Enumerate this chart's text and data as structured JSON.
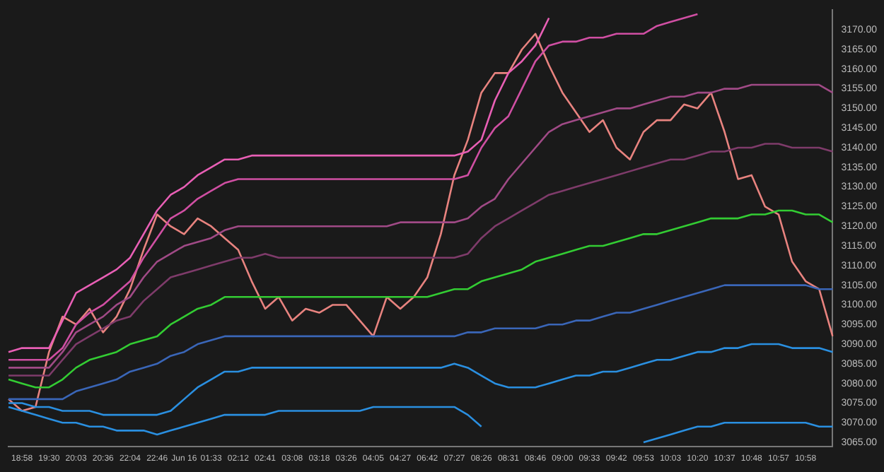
{
  "chart_data": {
    "type": "line",
    "grid": false,
    "legend": false,
    "marker": "none",
    "line_style": "solid",
    "categories": [
      null,
      "18:58",
      null,
      "19:30",
      null,
      "20:03",
      null,
      "20:36",
      null,
      "22:04",
      null,
      "22:46",
      null,
      "Jun 16",
      null,
      "01:33",
      null,
      "02:12",
      null,
      "02:41",
      null,
      "03:08",
      null,
      "03:18",
      null,
      "03:26",
      null,
      "04:05",
      null,
      "04:27",
      null,
      "06:42",
      null,
      "07:27",
      null,
      "08:26",
      null,
      "08:31",
      null,
      "08:46",
      null,
      "09:00",
      null,
      "09:33",
      null,
      "09:42",
      null,
      "09:53",
      null,
      "10:03",
      null,
      "10:20",
      null,
      "10:37",
      null,
      "10:48",
      null,
      "10:57",
      null,
      "10:58",
      null,
      null
    ],
    "ylim": [
      3064,
      3175
    ],
    "yticks": [
      {
        "value": 3065,
        "label": "3065.00"
      },
      {
        "value": 3070,
        "label": "3070.00"
      },
      {
        "value": 3075,
        "label": "3075.00"
      },
      {
        "value": 3080,
        "label": "3080.00"
      },
      {
        "value": 3085,
        "label": "3085.00"
      },
      {
        "value": 3090,
        "label": "3090.00"
      },
      {
        "value": 3095,
        "label": "3095.00"
      },
      {
        "value": 3100,
        "label": "3100.00"
      },
      {
        "value": 3105,
        "label": "3105.00"
      },
      {
        "value": 3110,
        "label": "3110.00"
      },
      {
        "value": 3115,
        "label": "3115.00"
      },
      {
        "value": 3120,
        "label": "3120.00"
      },
      {
        "value": 3125,
        "label": "3125.00"
      },
      {
        "value": 3130,
        "label": "3130.00"
      },
      {
        "value": 3135,
        "label": "3135.00"
      },
      {
        "value": 3140,
        "label": "3140.00"
      },
      {
        "value": 3145,
        "label": "3145.00"
      },
      {
        "value": 3150,
        "label": "3150.00"
      },
      {
        "value": 3155,
        "label": "3155.00"
      },
      {
        "value": 3160,
        "label": "3160.00"
      },
      {
        "value": 3165,
        "label": "3165.00"
      },
      {
        "value": 3170,
        "label": "3170.00"
      }
    ],
    "series": [
      {
        "color": "#e85fb5",
        "values": [
          3088,
          3089,
          3089,
          3089,
          3096,
          3103,
          3105,
          3107,
          3109,
          3112,
          3118,
          3124,
          3128,
          3130,
          3133,
          3135,
          3137,
          3137,
          3138,
          3138,
          3138,
          3138,
          3138,
          3138,
          3138,
          3138,
          3138,
          3138,
          3138,
          3138,
          3138,
          3138,
          3138,
          3138,
          3139,
          3142,
          3152,
          3159,
          3162,
          3166,
          3173,
          null,
          null,
          null,
          null,
          null,
          null,
          null,
          null,
          null,
          null,
          null,
          null,
          null,
          null,
          null,
          null,
          null,
          null,
          null,
          null,
          null
        ]
      },
      {
        "color": "#d04fa3",
        "values": [
          3086,
          3086,
          3086,
          3086,
          3089,
          3095,
          3098,
          3100,
          3103,
          3106,
          3112,
          3117,
          3122,
          3124,
          3127,
          3129,
          3131,
          3132,
          3132,
          3132,
          3132,
          3132,
          3132,
          3132,
          3132,
          3132,
          3132,
          3132,
          3132,
          3132,
          3132,
          3132,
          3132,
          3132,
          3133,
          3140,
          3145,
          3148,
          3155,
          3162,
          3166,
          3167,
          3167,
          3168,
          3168,
          3169,
          3169,
          3169,
          3171,
          3172,
          3173,
          3174,
          null,
          null,
          null,
          null,
          null,
          null,
          null,
          null,
          null,
          null
        ]
      },
      {
        "color": "#a04a86",
        "values": [
          3084,
          3084,
          3084,
          3084,
          3088,
          3093,
          3095,
          3097,
          3100,
          3102,
          3107,
          3111,
          3113,
          3115,
          3116,
          3117,
          3119,
          3120,
          3120,
          3120,
          3120,
          3120,
          3120,
          3120,
          3120,
          3120,
          3120,
          3120,
          3120,
          3121,
          3121,
          3121,
          3121,
          3121,
          3122,
          3125,
          3127,
          3132,
          3136,
          3140,
          3144,
          3146,
          3147,
          3148,
          3149,
          3150,
          3150,
          3151,
          3152,
          3153,
          3153,
          3154,
          3154,
          3155,
          3155,
          3156,
          3156,
          3156,
          3156,
          3156,
          3156,
          3154
        ]
      },
      {
        "color": "#7e3b6a",
        "values": [
          3082,
          3082,
          3082,
          3082,
          3086,
          3090,
          3092,
          3094,
          3096,
          3097,
          3101,
          3104,
          3107,
          3108,
          3109,
          3110,
          3111,
          3112,
          3112,
          3113,
          3112,
          3112,
          3112,
          3112,
          3112,
          3112,
          3112,
          3112,
          3112,
          3112,
          3112,
          3112,
          3112,
          3112,
          3113,
          3117,
          3120,
          3122,
          3124,
          3126,
          3128,
          3129,
          3130,
          3131,
          3132,
          3133,
          3134,
          3135,
          3136,
          3137,
          3137,
          3138,
          3139,
          3139,
          3140,
          3140,
          3141,
          3141,
          3140,
          3140,
          3140,
          3139
        ]
      },
      {
        "color": "#33cc33",
        "values": [
          3081,
          3080,
          3079,
          3079,
          3081,
          3084,
          3086,
          3087,
          3088,
          3090,
          3091,
          3092,
          3095,
          3097,
          3099,
          3100,
          3102,
          3102,
          3102,
          3102,
          3102,
          3102,
          3102,
          3102,
          3102,
          3102,
          3102,
          3102,
          3102,
          3102,
          3102,
          3102,
          3103,
          3104,
          3104,
          3106,
          3107,
          3108,
          3109,
          3111,
          3112,
          3113,
          3114,
          3115,
          3115,
          3116,
          3117,
          3118,
          3118,
          3119,
          3120,
          3121,
          3122,
          3122,
          3122,
          3123,
          3123,
          3124,
          3124,
          3123,
          3123,
          3121
        ]
      },
      {
        "color": "#3a66b8",
        "values": [
          3076,
          3076,
          3076,
          3076,
          3076,
          3078,
          3079,
          3080,
          3081,
          3083,
          3084,
          3085,
          3087,
          3088,
          3090,
          3091,
          3092,
          3092,
          3092,
          3092,
          3092,
          3092,
          3092,
          3092,
          3092,
          3092,
          3092,
          3092,
          3092,
          3092,
          3092,
          3092,
          3092,
          3092,
          3093,
          3093,
          3094,
          3094,
          3094,
          3094,
          3095,
          3095,
          3096,
          3096,
          3097,
          3098,
          3098,
          3099,
          3100,
          3101,
          3102,
          3103,
          3104,
          3105,
          3105,
          3105,
          3105,
          3105,
          3105,
          3105,
          3104,
          3104
        ]
      },
      {
        "color": "#2a8fe0",
        "values": [
          3075,
          3075,
          3074,
          3074,
          3073,
          3073,
          3073,
          3072,
          3072,
          3072,
          3072,
          3072,
          3073,
          3076,
          3079,
          3081,
          3083,
          3083,
          3084,
          3084,
          3084,
          3084,
          3084,
          3084,
          3084,
          3084,
          3084,
          3084,
          3084,
          3084,
          3084,
          3084,
          3084,
          3085,
          3084,
          3082,
          3080,
          3079,
          3079,
          3079,
          3080,
          3081,
          3082,
          3082,
          3083,
          3083,
          3084,
          3085,
          3086,
          3086,
          3087,
          3088,
          3088,
          3089,
          3089,
          3090,
          3090,
          3090,
          3089,
          3089,
          3089,
          3088
        ]
      },
      {
        "color": "#2a8fe0",
        "values": [
          3074,
          3073,
          3072,
          3071,
          3070,
          3070,
          3069,
          3069,
          3068,
          3068,
          3068,
          3067,
          3068,
          3069,
          3070,
          3071,
          3072,
          3072,
          3072,
          3072,
          3073,
          3073,
          3073,
          3073,
          3073,
          3073,
          3073,
          3074,
          3074,
          3074,
          3074,
          3074,
          3074,
          3074,
          3072,
          3069,
          null,
          null,
          null,
          null,
          null,
          null,
          null,
          null,
          null,
          null,
          null,
          null,
          null,
          null,
          null,
          null,
          null,
          null,
          null,
          null,
          null,
          null,
          null,
          null,
          null,
          null
        ]
      },
      {
        "color": "#2a8fe0",
        "values": [
          null,
          null,
          null,
          null,
          null,
          null,
          null,
          null,
          null,
          null,
          null,
          null,
          null,
          null,
          null,
          null,
          null,
          null,
          null,
          null,
          null,
          null,
          null,
          null,
          null,
          null,
          null,
          null,
          null,
          null,
          null,
          null,
          null,
          null,
          null,
          null,
          null,
          null,
          null,
          null,
          null,
          null,
          null,
          null,
          null,
          null,
          null,
          3065,
          3066,
          3067,
          3068,
          3069,
          3069,
          3070,
          3070,
          3070,
          3070,
          3070,
          3070,
          3070,
          3069,
          3069
        ]
      },
      {
        "color": "#e8837f",
        "values": [
          3076,
          3073,
          3074,
          3088,
          3097,
          3095,
          3099,
          3093,
          3097,
          3104,
          3114,
          3123,
          3120,
          3118,
          3122,
          3120,
          3117,
          3114,
          3106,
          3099,
          3102,
          3096,
          3099,
          3098,
          3100,
          3100,
          3096,
          3092,
          3102,
          3099,
          3102,
          3107,
          3118,
          3133,
          3142,
          3154,
          3159,
          3159,
          3165,
          3169,
          3161,
          3154,
          3149,
          3144,
          3147,
          3140,
          3137,
          3144,
          3147,
          3147,
          3151,
          3150,
          3154,
          3144,
          3132,
          3133,
          3125,
          3123,
          3111,
          3106,
          3104,
          3092
        ]
      }
    ]
  }
}
